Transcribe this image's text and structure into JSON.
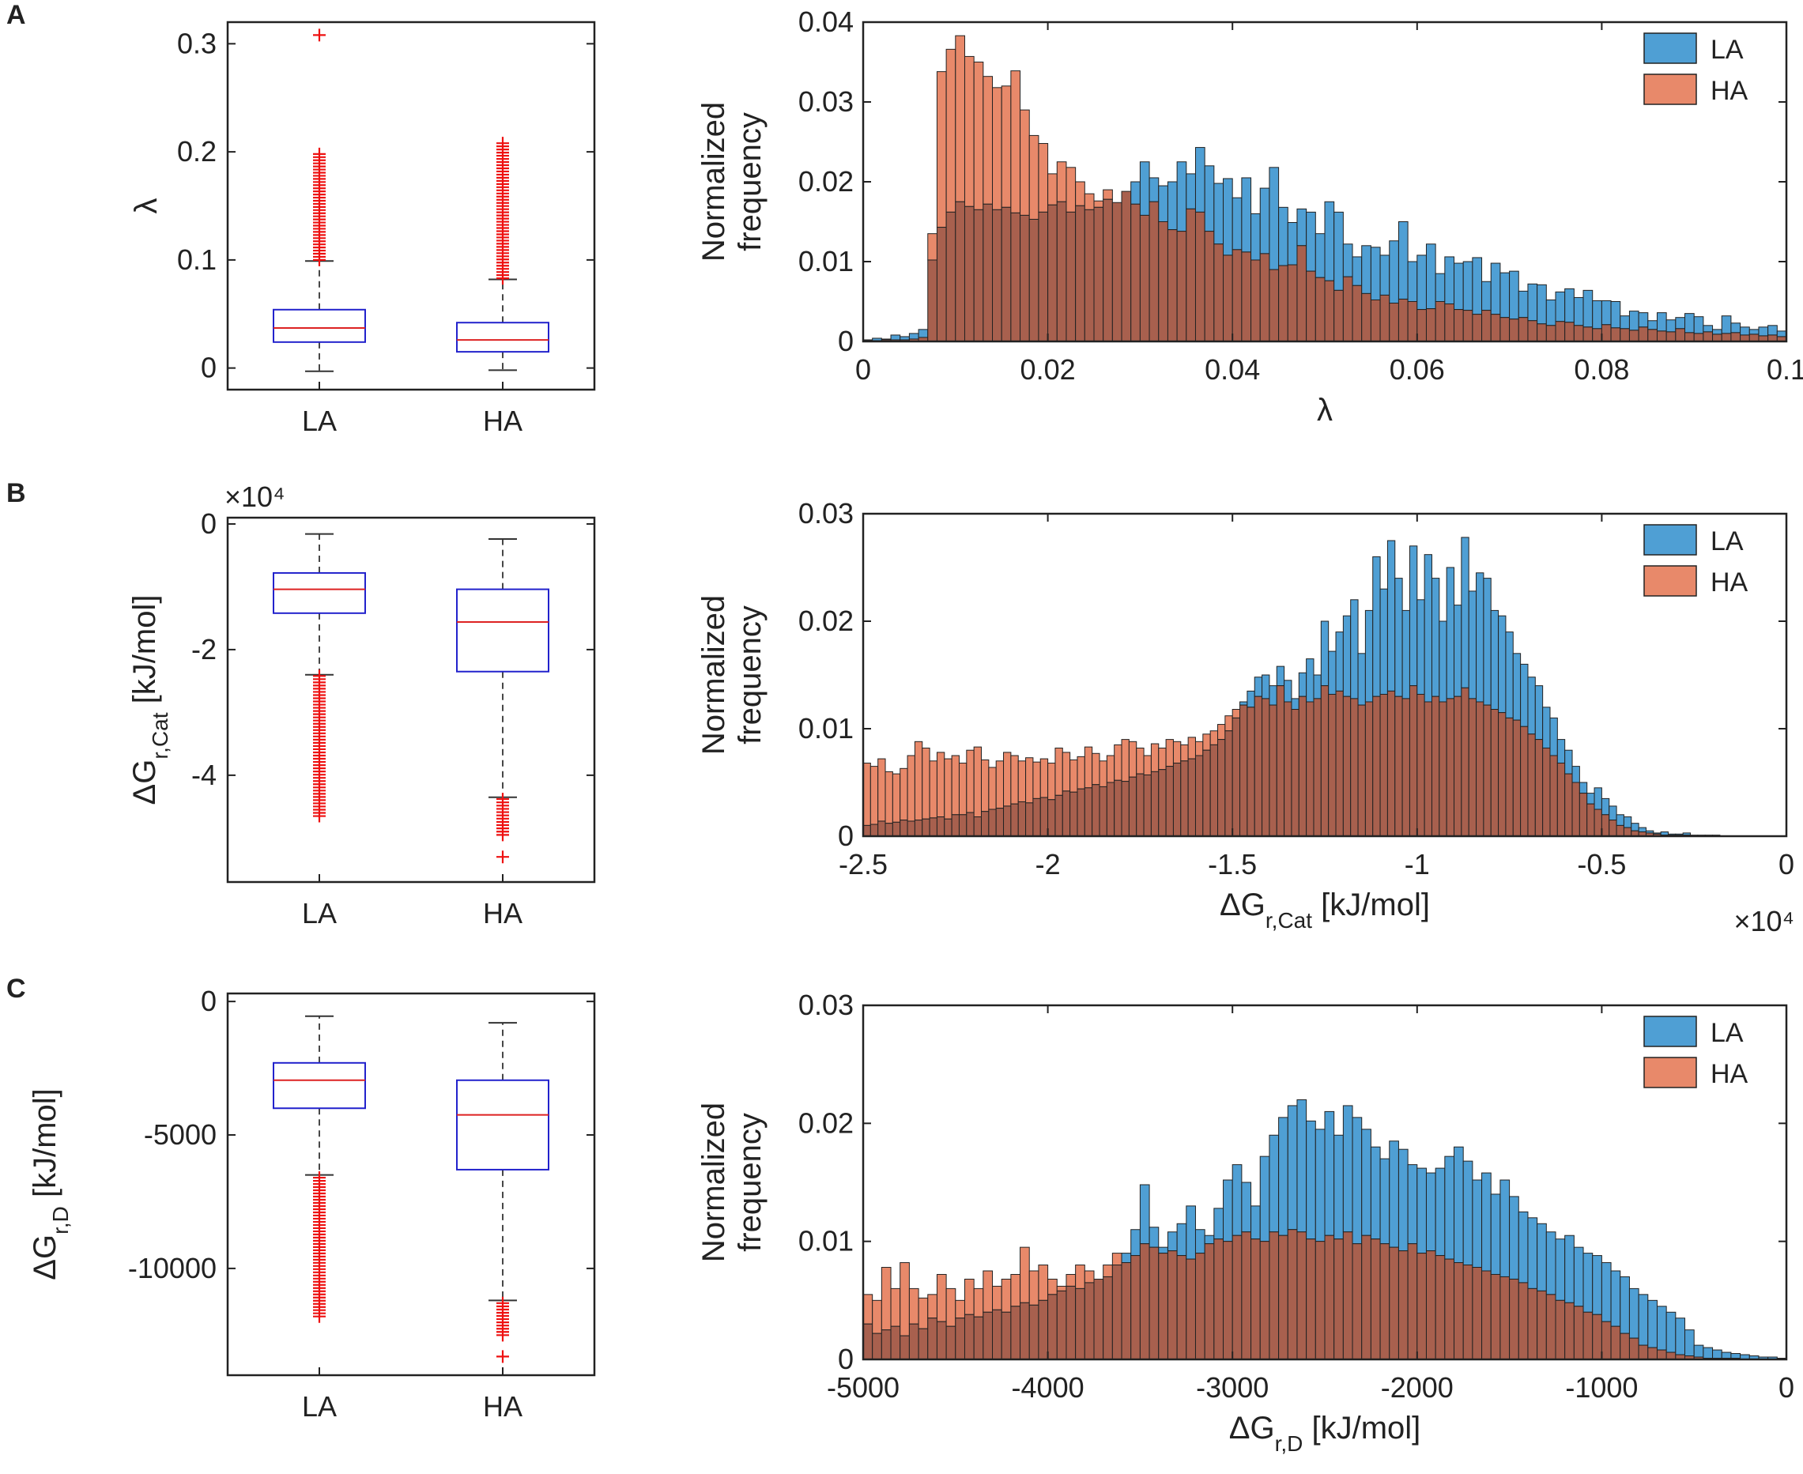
{
  "colors": {
    "la_fill": "#4f9fd4",
    "ha_fill": "#e8896a",
    "overlap_fill": "#a8604e",
    "box_edge": "#2222cc",
    "median": "#dd2222",
    "outlier": "#ee1111",
    "axis": "#222222"
  },
  "chart_data": [
    {
      "id": "A-box",
      "panel_letter": "A",
      "type": "box",
      "categories": [
        "LA",
        "HA"
      ],
      "ylim": [
        -0.02,
        0.32
      ],
      "yticks": [
        0,
        0.1,
        0.2,
        0.3
      ],
      "ytick_labels": [
        "0",
        "0.1",
        "0.2",
        "0.3"
      ],
      "ylabel": "λ",
      "ylabel_sub": "",
      "ylabel_unit": "",
      "multiplier": "",
      "boxes": [
        {
          "name": "LA",
          "whisker_low": -0.003,
          "q1": 0.024,
          "median": 0.037,
          "q3": 0.054,
          "whisker_high": 0.099,
          "outliers_min": 0.1,
          "outliers_max": 0.198,
          "outlier_extra": [
            0.308
          ]
        },
        {
          "name": "HA",
          "whisker_low": -0.002,
          "q1": 0.015,
          "median": 0.026,
          "q3": 0.042,
          "whisker_high": 0.082,
          "outliers_min": 0.083,
          "outliers_max": 0.208,
          "outlier_extra": []
        }
      ]
    },
    {
      "id": "A-hist",
      "type": "histogram",
      "xlim": [
        0,
        0.1
      ],
      "ylim": [
        0,
        0.04
      ],
      "xticks": [
        0,
        0.02,
        0.04,
        0.06,
        0.08,
        0.1
      ],
      "xtick_labels": [
        "0",
        "0.02",
        "0.04",
        "0.06",
        "0.08",
        "0.1"
      ],
      "yticks": [
        0,
        0.01,
        0.02,
        0.03,
        0.04
      ],
      "ytick_labels": [
        "0",
        "0.01",
        "0.02",
        "0.03",
        "0.04"
      ],
      "xlabel": "λ",
      "xlabel_sub": "",
      "xlabel_unit": "",
      "x_multiplier": "",
      "ylabel": [
        "Normalized",
        "frequency"
      ],
      "legend": [
        "LA",
        "HA"
      ],
      "bin_width": 0.001,
      "series": [
        {
          "name": "LA",
          "values": [
            0.0002,
            0.0004,
            0.0003,
            0.0008,
            0.0006,
            0.001,
            0.0015,
            0.0102,
            0.0143,
            0.0162,
            0.0175,
            0.0169,
            0.0165,
            0.0172,
            0.0165,
            0.0168,
            0.0161,
            0.0158,
            0.0153,
            0.0162,
            0.0171,
            0.0175,
            0.0162,
            0.017,
            0.0165,
            0.0168,
            0.0178,
            0.0174,
            0.0188,
            0.02,
            0.0225,
            0.0205,
            0.0195,
            0.02,
            0.0225,
            0.021,
            0.0243,
            0.022,
            0.0198,
            0.0204,
            0.018,
            0.0205,
            0.016,
            0.0192,
            0.0218,
            0.0168,
            0.0149,
            0.0166,
            0.0162,
            0.0135,
            0.0175,
            0.0162,
            0.0122,
            0.0106,
            0.012,
            0.0118,
            0.0108,
            0.0126,
            0.015,
            0.01,
            0.0108,
            0.0122,
            0.0085,
            0.0106,
            0.0098,
            0.01,
            0.0105,
            0.0075,
            0.0098,
            0.0086,
            0.0088,
            0.0063,
            0.0072,
            0.0071,
            0.0052,
            0.0062,
            0.0066,
            0.0055,
            0.0064,
            0.0051,
            0.0051,
            0.005,
            0.0032,
            0.0038,
            0.0036,
            0.0026,
            0.0036,
            0.0027,
            0.003,
            0.0035,
            0.0031,
            0.002,
            0.0015,
            0.0032,
            0.0023,
            0.0018,
            0.0015,
            0.0018,
            0.002,
            0.0013
          ]
        },
        {
          "name": "HA",
          "values": [
            0.0001,
            0.0001,
            0.0002,
            0.0002,
            0.0002,
            0.0003,
            0.0005,
            0.0135,
            0.0338,
            0.0366,
            0.0383,
            0.0357,
            0.035,
            0.0332,
            0.0318,
            0.032,
            0.0339,
            0.029,
            0.0258,
            0.0248,
            0.021,
            0.0225,
            0.0218,
            0.02,
            0.0185,
            0.0176,
            0.019,
            0.0174,
            0.0188,
            0.0172,
            0.0158,
            0.0175,
            0.015,
            0.014,
            0.0138,
            0.0166,
            0.0162,
            0.0138,
            0.0122,
            0.0108,
            0.0115,
            0.0112,
            0.0102,
            0.011,
            0.009,
            0.0095,
            0.0096,
            0.012,
            0.0088,
            0.008,
            0.0076,
            0.0064,
            0.0081,
            0.007,
            0.006,
            0.0052,
            0.0058,
            0.0048,
            0.0053,
            0.005,
            0.004,
            0.0041,
            0.005,
            0.0047,
            0.004,
            0.0039,
            0.0034,
            0.0039,
            0.0034,
            0.003,
            0.0028,
            0.003,
            0.0026,
            0.0022,
            0.002,
            0.0025,
            0.0024,
            0.002,
            0.0018,
            0.0016,
            0.0021,
            0.0017,
            0.0016,
            0.0014,
            0.0018,
            0.0015,
            0.0013,
            0.0012,
            0.0016,
            0.0011,
            0.001,
            0.0012,
            0.0009,
            0.001,
            0.0011,
            0.0008,
            0.0009,
            0.0007,
            0.0008,
            0.0006
          ]
        }
      ]
    },
    {
      "id": "B-box",
      "panel_letter": "B",
      "type": "box",
      "categories": [
        "LA",
        "HA"
      ],
      "ylim": [
        -5.7,
        0.1
      ],
      "yticks": [
        0,
        -2,
        -4
      ],
      "ytick_labels": [
        "0",
        "-2",
        "-4"
      ],
      "ylabel": "ΔG",
      "ylabel_sub": "r,Cat",
      "ylabel_unit": " [kJ/mol]",
      "multiplier": "×10⁴",
      "boxes": [
        {
          "name": "LA",
          "whisker_low": -2.4,
          "q1": -1.42,
          "median": -1.04,
          "q3": -0.78,
          "whisker_high": -0.16,
          "outliers_min": -4.65,
          "outliers_max": -2.42,
          "outlier_extra": []
        },
        {
          "name": "HA",
          "whisker_low": -4.35,
          "q1": -2.35,
          "median": -1.56,
          "q3": -1.04,
          "whisker_high": -0.24,
          "outliers_min": -4.95,
          "outliers_max": -4.38,
          "outlier_extra": [
            -5.3
          ]
        }
      ]
    },
    {
      "id": "B-hist",
      "type": "histogram",
      "xlim": [
        -2.5,
        0
      ],
      "ylim": [
        0,
        0.03
      ],
      "xticks": [
        -2.5,
        -2,
        -1.5,
        -1,
        -0.5,
        0
      ],
      "xtick_labels": [
        "-2.5",
        "-2",
        "-1.5",
        "-1",
        "-0.5",
        "0"
      ],
      "yticks": [
        0,
        0.01,
        0.02,
        0.03
      ],
      "ytick_labels": [
        "0",
        "0.01",
        "0.02",
        "0.03"
      ],
      "xlabel": "ΔG",
      "xlabel_sub": "r,Cat",
      "xlabel_unit": " [kJ/mol]",
      "x_multiplier": "×10⁴",
      "ylabel": [
        "Normalized",
        "frequency"
      ],
      "legend": [
        "LA",
        "HA"
      ],
      "bin_width": 0.02,
      "series": [
        {
          "name": "LA",
          "values": [
            0.001,
            0.0011,
            0.0014,
            0.0012,
            0.0013,
            0.0015,
            0.0014,
            0.0015,
            0.0016,
            0.0017,
            0.0018,
            0.0016,
            0.002,
            0.002,
            0.0022,
            0.0018,
            0.0023,
            0.0025,
            0.0026,
            0.0028,
            0.003,
            0.0032,
            0.0031,
            0.0035,
            0.0036,
            0.0034,
            0.0038,
            0.0042,
            0.0041,
            0.0044,
            0.0045,
            0.0048,
            0.0046,
            0.005,
            0.0052,
            0.0051,
            0.0055,
            0.0058,
            0.0057,
            0.006,
            0.0062,
            0.0065,
            0.0068,
            0.007,
            0.0072,
            0.0075,
            0.008,
            0.0085,
            0.009,
            0.0098,
            0.011,
            0.0125,
            0.0135,
            0.0148,
            0.015,
            0.014,
            0.0158,
            0.0145,
            0.0128,
            0.0152,
            0.0165,
            0.015,
            0.02,
            0.0172,
            0.019,
            0.0205,
            0.022,
            0.017,
            0.021,
            0.026,
            0.023,
            0.0275,
            0.024,
            0.021,
            0.027,
            0.022,
            0.0262,
            0.024,
            0.02,
            0.025,
            0.0215,
            0.0278,
            0.0228,
            0.0245,
            0.024,
            0.021,
            0.0205,
            0.019,
            0.017,
            0.016,
            0.0148,
            0.014,
            0.012,
            0.011,
            0.009,
            0.008,
            0.0065,
            0.005,
            0.004,
            0.0045,
            0.0035,
            0.0028,
            0.002,
            0.0018,
            0.0012,
            0.0008,
            0.0005,
            0.0003,
            0.0004,
            0.0002,
            0.0002,
            0.0003,
            0.0001,
            0.0001,
            0.0001,
            0.0001,
            0.0,
            0.0,
            0.0,
            0.0,
            0.0,
            0.0,
            0.0,
            0.0,
            0.0
          ]
        },
        {
          "name": "HA",
          "values": [
            0.0068,
            0.0065,
            0.0072,
            0.006,
            0.0058,
            0.0063,
            0.0075,
            0.0088,
            0.0082,
            0.007,
            0.0078,
            0.0072,
            0.0075,
            0.0068,
            0.008,
            0.0083,
            0.0071,
            0.0064,
            0.007,
            0.0078,
            0.0075,
            0.007,
            0.0073,
            0.0069,
            0.0072,
            0.0068,
            0.0082,
            0.0078,
            0.0071,
            0.0074,
            0.0083,
            0.0077,
            0.007,
            0.0075,
            0.0085,
            0.009,
            0.0088,
            0.0082,
            0.0075,
            0.0086,
            0.0082,
            0.009,
            0.0088,
            0.0085,
            0.0092,
            0.0088,
            0.0095,
            0.0098,
            0.0104,
            0.0112,
            0.0118,
            0.0122,
            0.012,
            0.013,
            0.0128,
            0.0122,
            0.014,
            0.0125,
            0.0118,
            0.013,
            0.0125,
            0.0128,
            0.014,
            0.0132,
            0.0135,
            0.013,
            0.0128,
            0.0122,
            0.0125,
            0.013,
            0.0132,
            0.0135,
            0.013,
            0.0128,
            0.014,
            0.0132,
            0.0125,
            0.013,
            0.0125,
            0.0128,
            0.013,
            0.0138,
            0.0128,
            0.0125,
            0.0122,
            0.0118,
            0.0115,
            0.011,
            0.0108,
            0.0102,
            0.0095,
            0.009,
            0.0082,
            0.0075,
            0.0068,
            0.0058,
            0.005,
            0.004,
            0.003,
            0.0025,
            0.002,
            0.0015,
            0.001,
            0.0008,
            0.0005,
            0.0004,
            0.0003,
            0.0002,
            0.0001,
            0.0001,
            0.0001,
            0.0001,
            0.0,
            0.0,
            0.0,
            0.0,
            0.0,
            0.0,
            0.0,
            0.0,
            0.0,
            0.0,
            0.0,
            0.0,
            0.0
          ]
        }
      ]
    },
    {
      "id": "C-box",
      "panel_letter": "C",
      "type": "box",
      "categories": [
        "LA",
        "HA"
      ],
      "ylim": [
        -14000,
        300
      ],
      "yticks": [
        0,
        -5000,
        -10000
      ],
      "ytick_labels": [
        "0",
        "-5000",
        "-10000"
      ],
      "ylabel": "ΔG",
      "ylabel_sub": "r,D",
      "ylabel_unit": " [kJ/mol]",
      "multiplier": "",
      "boxes": [
        {
          "name": "LA",
          "whisker_low": -6500,
          "q1": -4000,
          "median": -2950,
          "q3": -2300,
          "whisker_high": -550,
          "outliers_min": -11800,
          "outliers_max": -6600,
          "outlier_extra": []
        },
        {
          "name": "HA",
          "whisker_low": -11200,
          "q1": -6300,
          "median": -4250,
          "q3": -2950,
          "whisker_high": -800,
          "outliers_min": -12500,
          "outliers_max": -11300,
          "outlier_extra": [
            -13300
          ]
        }
      ]
    },
    {
      "id": "C-hist",
      "type": "histogram",
      "xlim": [
        -5000,
        0
      ],
      "ylim": [
        0,
        0.03
      ],
      "xticks": [
        -5000,
        -4000,
        -3000,
        -2000,
        -1000,
        0
      ],
      "xtick_labels": [
        "-5000",
        "-4000",
        "-3000",
        "-2000",
        "-1000",
        "0"
      ],
      "yticks": [
        0,
        0.01,
        0.02,
        0.03
      ],
      "ytick_labels": [
        "0",
        "0.01",
        "0.02",
        "0.03"
      ],
      "xlabel": "ΔG",
      "xlabel_sub": "r,D",
      "xlabel_unit": " [kJ/mol]",
      "x_multiplier": "",
      "ylabel": [
        "Normalized",
        "frequency"
      ],
      "legend": [
        "LA",
        "HA"
      ],
      "bin_width": 50,
      "series": [
        {
          "name": "LA",
          "values": [
            0.003,
            0.0022,
            0.0025,
            0.0028,
            0.002,
            0.003,
            0.0026,
            0.0035,
            0.0032,
            0.0028,
            0.0035,
            0.0038,
            0.0036,
            0.004,
            0.0042,
            0.004,
            0.0045,
            0.0048,
            0.0046,
            0.005,
            0.0055,
            0.0058,
            0.0062,
            0.006,
            0.0065,
            0.0068,
            0.007,
            0.008,
            0.009,
            0.011,
            0.0148,
            0.0112,
            0.0095,
            0.0108,
            0.0115,
            0.013,
            0.011,
            0.0105,
            0.0128,
            0.0152,
            0.0165,
            0.015,
            0.013,
            0.0172,
            0.019,
            0.0205,
            0.0215,
            0.022,
            0.0202,
            0.0195,
            0.021,
            0.019,
            0.0215,
            0.0205,
            0.0195,
            0.018,
            0.017,
            0.0185,
            0.0178,
            0.0165,
            0.0162,
            0.0158,
            0.0162,
            0.0172,
            0.018,
            0.0168,
            0.0152,
            0.0158,
            0.014,
            0.0152,
            0.0138,
            0.0125,
            0.012,
            0.0115,
            0.0108,
            0.0102,
            0.0105,
            0.0095,
            0.009,
            0.0088,
            0.0082,
            0.0075,
            0.007,
            0.006,
            0.0055,
            0.005,
            0.0045,
            0.004,
            0.0035,
            0.0025,
            0.0012,
            0.001,
            0.0008,
            0.0006,
            0.0005,
            0.0004,
            0.0003,
            0.0002,
            0.0002,
            0.0001
          ]
        },
        {
          "name": "HA",
          "values": [
            0.0055,
            0.005,
            0.0078,
            0.006,
            0.0082,
            0.006,
            0.0052,
            0.0055,
            0.0072,
            0.006,
            0.005,
            0.0068,
            0.006,
            0.0075,
            0.0062,
            0.0068,
            0.0072,
            0.0095,
            0.0075,
            0.008,
            0.0068,
            0.0062,
            0.0072,
            0.008,
            0.0075,
            0.0068,
            0.008,
            0.009,
            0.0082,
            0.0088,
            0.0098,
            0.0095,
            0.009,
            0.0092,
            0.0088,
            0.0085,
            0.009,
            0.0098,
            0.0102,
            0.01,
            0.0105,
            0.0108,
            0.0102,
            0.01,
            0.0108,
            0.0105,
            0.011,
            0.0108,
            0.0102,
            0.01,
            0.0105,
            0.0102,
            0.0108,
            0.0098,
            0.0105,
            0.0102,
            0.0098,
            0.0095,
            0.0092,
            0.0098,
            0.009,
            0.0092,
            0.0088,
            0.0085,
            0.0082,
            0.008,
            0.0078,
            0.0075,
            0.0072,
            0.007,
            0.0068,
            0.0065,
            0.006,
            0.0058,
            0.0055,
            0.005,
            0.0048,
            0.0045,
            0.004,
            0.0038,
            0.0032,
            0.0028,
            0.0022,
            0.0018,
            0.0012,
            0.001,
            0.0008,
            0.0006,
            0.0004,
            0.0003,
            0.0002,
            0.0001,
            0.0001,
            0.0001,
            0.0001,
            0.0,
            0.0,
            0.0,
            0.0,
            0.0
          ]
        }
      ]
    }
  ]
}
